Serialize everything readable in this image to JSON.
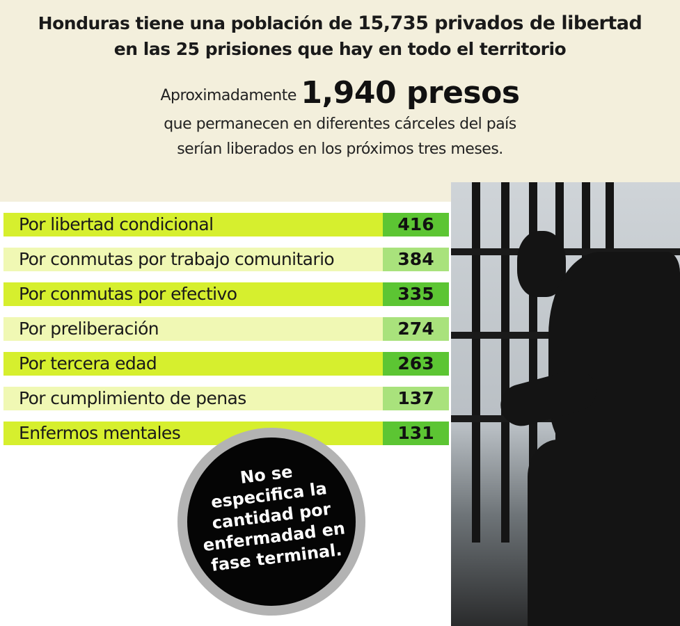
{
  "header": {
    "line1_pre": "Honduras tiene una población de ",
    "line1_bold": "15,735 privados de libertad",
    "line2": "en las 25 prisiones que hay en todo el territorio",
    "approx_pre": "Aproximadamente ",
    "approx_big": "1,940 presos",
    "line4": "que permanecen en diferentes cárceles del país",
    "line5": "serían liberados en los próximos tres meses."
  },
  "chart_data": {
    "type": "table",
    "categories": [
      "Por libertad condicional",
      "Por conmutas por trabajo comunitario",
      "Por conmutas por efectivo",
      "Por preliberación",
      "Por tercera edad",
      "Por cumplimiento de penas",
      "Enfermos mentales"
    ],
    "values": [
      "416",
      "384",
      "335",
      "274",
      "263",
      "137",
      "131"
    ]
  },
  "note": {
    "lines": [
      "No se",
      "especifica la",
      "cantidad por",
      "enfermadad en",
      "fase terminal."
    ]
  },
  "colors": {
    "background_top": "#f3efdc",
    "row_bright": "#d6ef2e",
    "row_pale": "#f0f8b4",
    "value_dark": "#5cc533",
    "value_light": "#a9e27c"
  }
}
